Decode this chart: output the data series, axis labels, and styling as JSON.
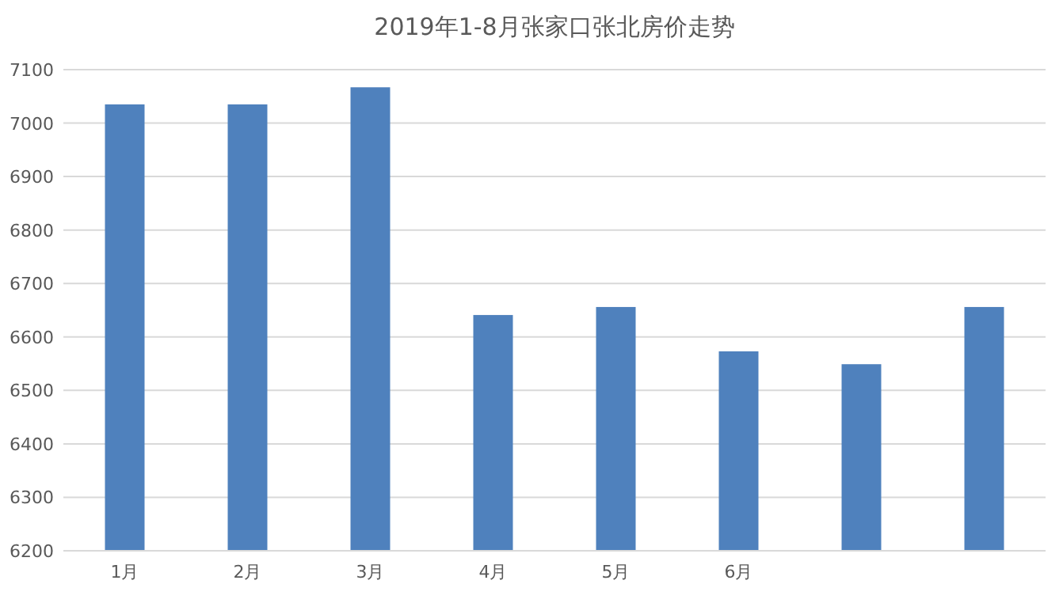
{
  "chart_data": {
    "type": "bar",
    "title": "2019年1-8月张家口张北房价走势",
    "categories": [
      "1月",
      "2月",
      "3月",
      "4月",
      "5月",
      "6月",
      null,
      null
    ],
    "values": [
      7035,
      7035,
      7067,
      6641,
      6656,
      6573,
      6549,
      6656
    ],
    "color": "#4f81bd",
    "ylim": [
      6200,
      7100
    ],
    "yticks": [
      6200,
      6300,
      6400,
      6500,
      6600,
      6700,
      6800,
      6900,
      7000,
      7100
    ],
    "grid": "y"
  }
}
